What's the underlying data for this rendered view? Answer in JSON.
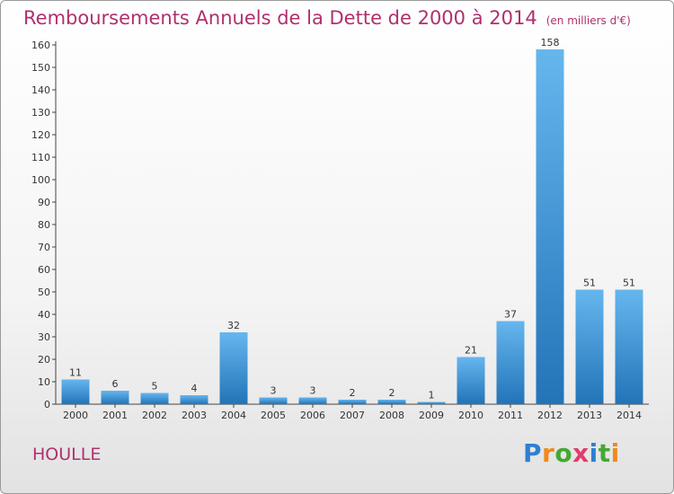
{
  "title": "Remboursements Annuels de la Dette de 2000 à 2014",
  "unit": "(en milliers d'€)",
  "commune": "HOULLE",
  "logo": {
    "letters": [
      "P",
      "r",
      "o",
      "x",
      "i",
      "t",
      "i"
    ],
    "colors": [
      "#2f7fd0",
      "#f08a1c",
      "#44a832",
      "#e23c6e",
      "#2f7fd0",
      "#44a832",
      "#f08a1c"
    ]
  },
  "colors": {
    "bar_top": "#66b6ee",
    "bar_bottom": "#2274b8",
    "title": "#b0306e"
  },
  "chart_data": {
    "type": "bar",
    "categories": [
      "2000",
      "2001",
      "2002",
      "2003",
      "2004",
      "2005",
      "2006",
      "2007",
      "2008",
      "2009",
      "2010",
      "2011",
      "2012",
      "2013",
      "2014"
    ],
    "values": [
      11,
      6,
      5,
      4,
      32,
      3,
      3,
      2,
      2,
      1,
      21,
      37,
      158,
      51,
      51
    ],
    "ylim": [
      0,
      160
    ],
    "yticks": [
      0,
      10,
      20,
      30,
      40,
      50,
      60,
      70,
      80,
      90,
      100,
      110,
      120,
      130,
      140,
      150,
      160
    ],
    "grid": false,
    "title": "Remboursements Annuels de la Dette de 2000 à 2014",
    "ylabel": "(en milliers d'€)",
    "xlabel": ""
  }
}
